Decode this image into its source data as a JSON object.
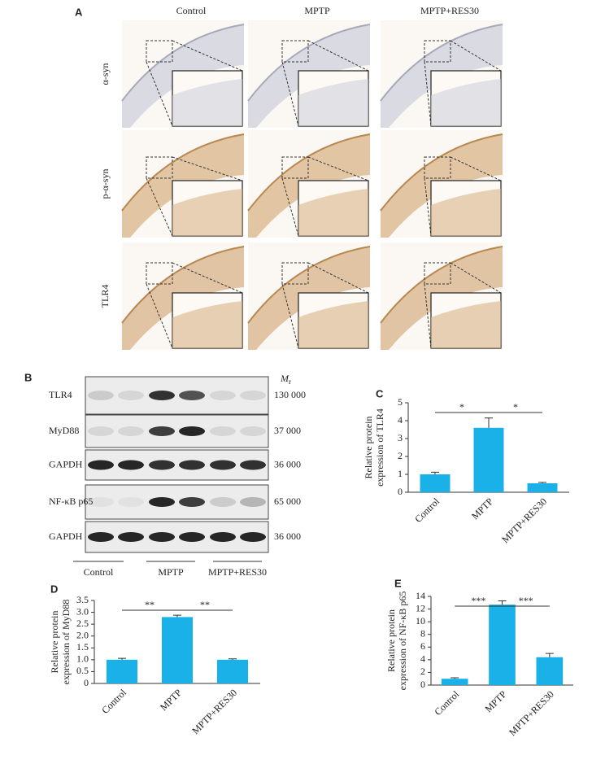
{
  "panel_a": {
    "label": "A",
    "columns": [
      "Control",
      "MPTP",
      "MPTP+RES30"
    ],
    "rows": [
      "α-syn",
      "p-α-syn",
      "TLR4"
    ]
  },
  "panel_b": {
    "label": "B",
    "mr_symbol": "M",
    "mr_subscript": "r",
    "bands": [
      {
        "name": "TLR4",
        "mr": "130 000"
      },
      {
        "name": "MyD88",
        "mr": "37 000"
      },
      {
        "name": "GAPDH",
        "mr": "36 000"
      },
      {
        "name": "NF-κB p65",
        "mr": "65 000"
      },
      {
        "name": "GAPDH",
        "mr": "36 000"
      }
    ],
    "groups": [
      "Control",
      "MPTP",
      "MPTP+RES30"
    ]
  },
  "chart_data": [
    {
      "type": "bar",
      "panel": "C",
      "ylabel": [
        "Relative protein",
        "expression of TLR4"
      ],
      "categories": [
        "Control",
        "MPTP",
        "MPTP+RES30"
      ],
      "values": [
        1.0,
        3.6,
        0.5
      ],
      "errors": [
        0.12,
        0.55,
        0.05
      ],
      "color": "#1ab0e8",
      "ylim": [
        0,
        5
      ],
      "yticks": [
        0,
        1,
        2,
        3,
        4,
        5
      ],
      "significance": [
        "*",
        "*"
      ]
    },
    {
      "type": "bar",
      "panel": "D",
      "ylabel": [
        "Relative protein",
        "expression of MyD88"
      ],
      "categories": [
        "Control",
        "MPTP",
        "MPTP+RES30"
      ],
      "values": [
        1.0,
        2.8,
        1.0
      ],
      "errors": [
        0.06,
        0.08,
        0.04
      ],
      "color": "#1ab0e8",
      "ylim": [
        0,
        3.5
      ],
      "yticks": [
        0,
        0.5,
        {
          "value": 1,
          "label": "1.0"
        },
        1.5,
        {
          "value": 2,
          "label": "2.0"
        },
        2.5,
        {
          "value": 3,
          "label": "3.0"
        },
        3.5
      ],
      "significance": [
        "**",
        "**"
      ]
    },
    {
      "type": "bar",
      "panel": "E",
      "ylabel": [
        "Relative protein",
        "expression of NF-κB p65"
      ],
      "categories": [
        "Control",
        "MPTP",
        "MPTP+RES30"
      ],
      "values": [
        1.0,
        12.7,
        4.4
      ],
      "errors": [
        0.15,
        0.6,
        0.6
      ],
      "color": "#1ab0e8",
      "ylim": [
        0,
        14
      ],
      "yticks": [
        0,
        2,
        4,
        6,
        8,
        10,
        12,
        14
      ],
      "significance": [
        "***",
        "***"
      ]
    }
  ]
}
